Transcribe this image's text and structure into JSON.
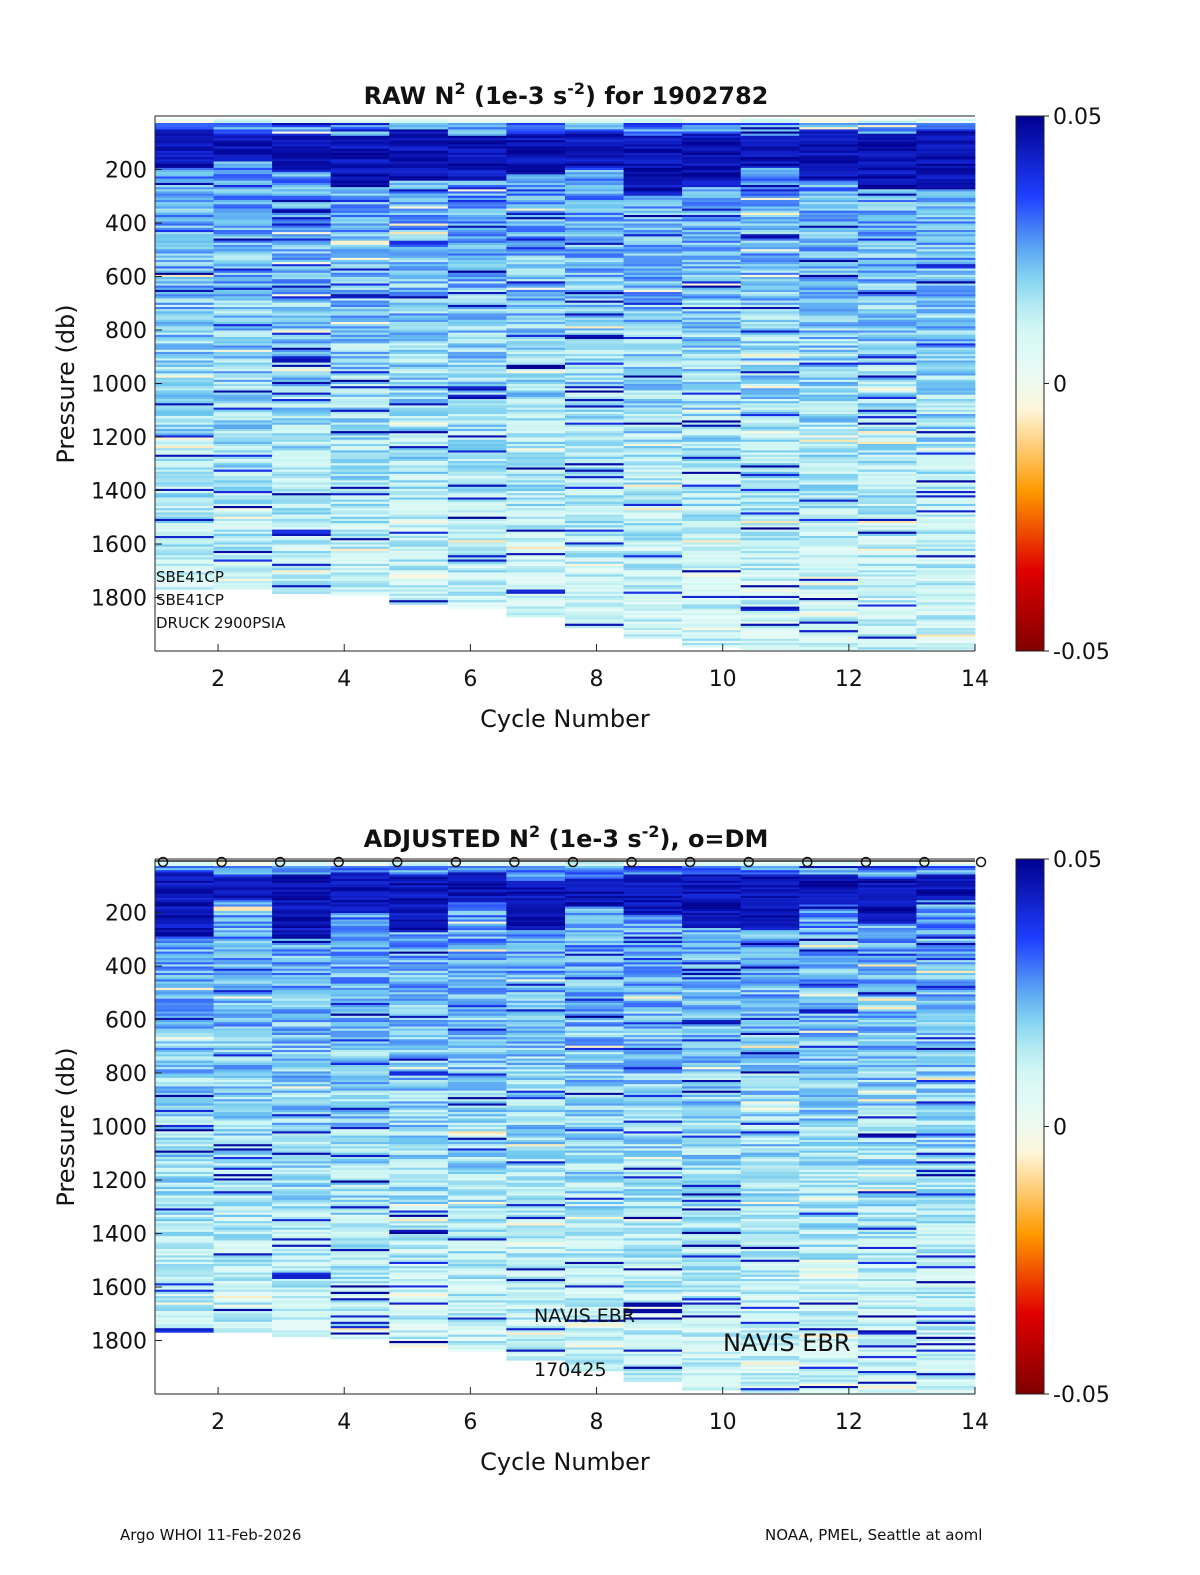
{
  "chart_data": [
    {
      "type": "heatmap",
      "panel": "raw",
      "title_parts": {
        "prefix": "RAW N",
        "sup1": "2",
        "middle": " (1e-3 s",
        "sup2": "-2",
        "suffix": ") for 1902782"
      },
      "xlabel": "Cycle Number",
      "ylabel": "Pressure (db)",
      "xlim": [
        1,
        14
      ],
      "ylim": [
        0,
        2000
      ],
      "y_reversed": true,
      "xticks": [
        "2",
        "4",
        "6",
        "8",
        "10",
        "12",
        "14"
      ],
      "yticks": [
        "200",
        "400",
        "600",
        "800",
        "1000",
        "1200",
        "1400",
        "1600",
        "1800"
      ],
      "cycles": [
        1,
        2,
        3,
        4,
        5,
        6,
        7,
        8,
        9,
        10,
        11,
        12,
        13,
        14
      ],
      "max_pressure": [
        1770,
        1770,
        1785,
        1790,
        1820,
        1840,
        1870,
        1910,
        1950,
        1980,
        1990,
        1995,
        1995,
        1995
      ],
      "colorbar": {
        "min": -0.05,
        "max": 0.05,
        "tick_labels": [
          "0.05",
          "0",
          "-0.05"
        ],
        "colormap": "jet-like with white/cream at zero"
      },
      "annotations": [
        "SBE41CP",
        "SBE41CP",
        "DRUCK 2900PSIA"
      ],
      "dm_markers": false
    },
    {
      "type": "heatmap",
      "panel": "adjusted",
      "title_parts": {
        "prefix": "ADJUSTED N",
        "sup1": "2",
        "middle": " (1e-3 s",
        "sup2": "-2",
        "suffix": "), o=DM"
      },
      "xlabel": "Cycle Number",
      "ylabel": "Pressure (db)",
      "xlim": [
        1,
        14
      ],
      "ylim": [
        0,
        2000
      ],
      "y_reversed": true,
      "xticks": [
        "2",
        "4",
        "6",
        "8",
        "10",
        "12",
        "14"
      ],
      "yticks": [
        "200",
        "400",
        "600",
        "800",
        "1000",
        "1200",
        "1400",
        "1600",
        "1800"
      ],
      "cycles": [
        1,
        2,
        3,
        4,
        5,
        6,
        7,
        8,
        9,
        10,
        11,
        12,
        13,
        14
      ],
      "max_pressure": [
        1770,
        1770,
        1785,
        1790,
        1820,
        1840,
        1870,
        1910,
        1950,
        1980,
        1990,
        1995,
        1995,
        1995
      ],
      "colorbar": {
        "min": -0.05,
        "max": 0.05,
        "tick_labels": [
          "0.05",
          "0",
          "-0.05"
        ],
        "colormap": "jet-like with white/cream at zero"
      },
      "annotations": [
        "NAVIS EBR",
        "170425",
        "NAVIS EBR"
      ],
      "dm_markers": true,
      "dm_marker_symbol": "o"
    }
  ],
  "footer": {
    "left": "Argo WHOI 11-Feb-2026",
    "right": "NOAA, PMEL, Seattle at aoml"
  },
  "colors": {
    "deep_navy": "#00008f",
    "blue": "#1f3fff",
    "light_cyan": "#cdf6f3",
    "cream": "#fdf6d8",
    "orange": "#ff9a00",
    "red": "#e00000",
    "dark_red": "#800000"
  }
}
